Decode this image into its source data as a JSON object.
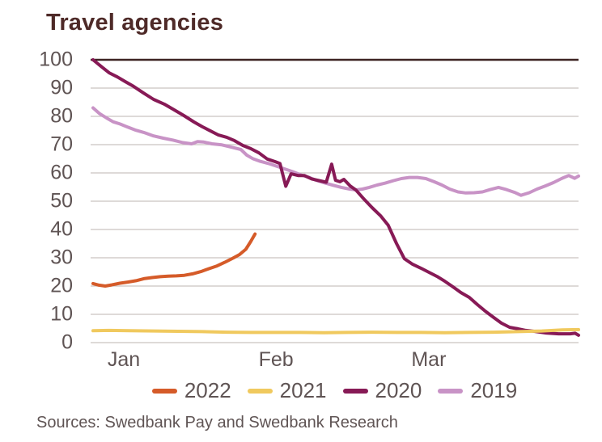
{
  "title": "Travel agencies",
  "source_note": "Sources: Swedbank Pay and Swedbank Research",
  "colors": {
    "title_text": "#4e2a28",
    "axis_text": "#5f5454",
    "grid_light": "#c9c3c1",
    "grid_dark_top": "#3d2423",
    "series_2022": "#d55b29",
    "series_2021": "#f0c95e",
    "series_2020": "#871a56",
    "series_2019": "#c893c6"
  },
  "chart_data": {
    "type": "line",
    "title": "Travel agencies",
    "xlabel": "",
    "ylabel": "",
    "ylim": [
      0,
      100
    ],
    "ytick_step": 10,
    "x_domain": [
      0,
      100
    ],
    "grid": "horizontal",
    "legend_position": "bottom",
    "x_ticks": [
      {
        "label": "Jan",
        "pos": 6.8
      },
      {
        "label": "Feb",
        "pos": 38.0
      },
      {
        "label": "Mar",
        "pos": 69.3
      }
    ],
    "series": [
      {
        "name": "2022",
        "color_key": "series_2022",
        "points": [
          [
            0.5,
            20.9
          ],
          [
            1.7,
            20.3
          ],
          [
            3,
            20
          ],
          [
            4.3,
            20.4
          ],
          [
            6,
            21
          ],
          [
            7.6,
            21.4
          ],
          [
            9.3,
            21.9
          ],
          [
            10.9,
            22.6
          ],
          [
            12.6,
            23
          ],
          [
            14.3,
            23.3
          ],
          [
            15.9,
            23.5
          ],
          [
            17.6,
            23.6
          ],
          [
            19.2,
            23.8
          ],
          [
            20.9,
            24.3
          ],
          [
            22.6,
            25.1
          ],
          [
            24.2,
            26.1
          ],
          [
            25.9,
            27.1
          ],
          [
            27.5,
            28.4
          ],
          [
            29.2,
            29.9
          ],
          [
            30.5,
            31.1
          ],
          [
            31.8,
            33
          ],
          [
            32.8,
            35.7
          ],
          [
            33.7,
            38.4
          ]
        ]
      },
      {
        "name": "2021",
        "color_key": "series_2021",
        "points": [
          [
            0.5,
            4.2
          ],
          [
            3.8,
            4.3
          ],
          [
            8,
            4.2
          ],
          [
            12.9,
            4.1
          ],
          [
            17.9,
            4
          ],
          [
            22.9,
            3.9
          ],
          [
            27.9,
            3.7
          ],
          [
            32.8,
            3.6
          ],
          [
            37.8,
            3.6
          ],
          [
            42.8,
            3.6
          ],
          [
            47.8,
            3.5
          ],
          [
            52.7,
            3.6
          ],
          [
            57.7,
            3.7
          ],
          [
            62.7,
            3.6
          ],
          [
            67.7,
            3.6
          ],
          [
            72.6,
            3.5
          ],
          [
            77.6,
            3.6
          ],
          [
            82.6,
            3.7
          ],
          [
            87.6,
            3.9
          ],
          [
            92.5,
            4.1
          ],
          [
            96.7,
            4.5
          ],
          [
            100,
            4.6
          ]
        ]
      },
      {
        "name": "2020",
        "color_key": "series_2020",
        "points": [
          [
            0.5,
            100
          ],
          [
            2.2,
            97.6
          ],
          [
            3.8,
            95.4
          ],
          [
            5.5,
            93.9
          ],
          [
            7.1,
            92.3
          ],
          [
            8.8,
            90.6
          ],
          [
            10.8,
            88.3
          ],
          [
            12.9,
            86
          ],
          [
            15.1,
            84.3
          ],
          [
            17.1,
            82.3
          ],
          [
            19.1,
            80.3
          ],
          [
            21.2,
            78
          ],
          [
            22.9,
            76.3
          ],
          [
            24.5,
            74.9
          ],
          [
            26.2,
            73.4
          ],
          [
            27.9,
            72.6
          ],
          [
            29.5,
            71.4
          ],
          [
            31.2,
            69.7
          ],
          [
            32.8,
            68.6
          ],
          [
            34.5,
            67.1
          ],
          [
            36.2,
            64.9
          ],
          [
            37.8,
            64
          ],
          [
            38.8,
            63.3
          ],
          [
            40,
            55.3
          ],
          [
            41.1,
            59.7
          ],
          [
            42.5,
            59.1
          ],
          [
            43.8,
            59.1
          ],
          [
            45.3,
            57.9
          ],
          [
            46.8,
            57.3
          ],
          [
            48.3,
            56.7
          ],
          [
            49.4,
            63.1
          ],
          [
            50.2,
            57.4
          ],
          [
            51.1,
            56.9
          ],
          [
            51.9,
            57.7
          ],
          [
            53.2,
            55.4
          ],
          [
            54.4,
            53.9
          ],
          [
            56.1,
            50.6
          ],
          [
            57.7,
            47.7
          ],
          [
            59.4,
            44.9
          ],
          [
            61,
            41.5
          ],
          [
            62.7,
            35
          ],
          [
            64.3,
            29.7
          ],
          [
            66,
            27.7
          ],
          [
            67.7,
            26.3
          ],
          [
            69.3,
            24.9
          ],
          [
            71,
            23.4
          ],
          [
            72.6,
            21.7
          ],
          [
            74.3,
            19.7
          ],
          [
            75.9,
            17.7
          ],
          [
            77.6,
            16
          ],
          [
            79.3,
            13.4
          ],
          [
            80.9,
            11.1
          ],
          [
            82.6,
            8.9
          ],
          [
            84.2,
            6.9
          ],
          [
            85.9,
            5.4
          ],
          [
            87.6,
            4.9
          ],
          [
            89.2,
            4.3
          ],
          [
            90.9,
            4
          ],
          [
            93.4,
            3.4
          ],
          [
            95.9,
            3.1
          ],
          [
            98.3,
            3.1
          ],
          [
            99.3,
            3.3
          ],
          [
            100,
            2.6
          ]
        ]
      },
      {
        "name": "2019",
        "color_key": "series_2019",
        "points": [
          [
            0.5,
            83
          ],
          [
            1.8,
            81
          ],
          [
            3.3,
            79.4
          ],
          [
            4.6,
            78.1
          ],
          [
            6,
            77.3
          ],
          [
            7.6,
            76.2
          ],
          [
            9.3,
            75.1
          ],
          [
            10.9,
            74.3
          ],
          [
            12.9,
            73.1
          ],
          [
            14.9,
            72.3
          ],
          [
            16.9,
            71.6
          ],
          [
            18.9,
            70.7
          ],
          [
            20.7,
            70.3
          ],
          [
            21.9,
            71.1
          ],
          [
            23.2,
            70.9
          ],
          [
            24.9,
            70.3
          ],
          [
            26.9,
            69.9
          ],
          [
            28.9,
            69.1
          ],
          [
            30.8,
            68.3
          ],
          [
            32,
            66.3
          ],
          [
            33.2,
            65.1
          ],
          [
            34.8,
            64.1
          ],
          [
            36.5,
            63.3
          ],
          [
            38.1,
            62.4
          ],
          [
            39.8,
            61.4
          ],
          [
            41.5,
            60.4
          ],
          [
            43.1,
            59.3
          ],
          [
            44.8,
            58.4
          ],
          [
            46.4,
            57.3
          ],
          [
            48.1,
            56.4
          ],
          [
            49.8,
            55.6
          ],
          [
            51.4,
            54.9
          ],
          [
            53.1,
            54.3
          ],
          [
            54.4,
            54
          ],
          [
            55.7,
            54.3
          ],
          [
            57.1,
            54.9
          ],
          [
            58.7,
            55.7
          ],
          [
            60.4,
            56.4
          ],
          [
            62.1,
            57.3
          ],
          [
            63.7,
            58
          ],
          [
            65.3,
            58.4
          ],
          [
            67,
            58.4
          ],
          [
            68.7,
            58
          ],
          [
            70.4,
            56.9
          ],
          [
            72,
            55.7
          ],
          [
            73.6,
            54.3
          ],
          [
            75.3,
            53.3
          ],
          [
            76.9,
            52.9
          ],
          [
            78.6,
            53
          ],
          [
            80.3,
            53.3
          ],
          [
            81.9,
            54.1
          ],
          [
            83.6,
            54.9
          ],
          [
            85.2,
            54.1
          ],
          [
            86.9,
            53.1
          ],
          [
            88.2,
            52.1
          ],
          [
            89.9,
            53
          ],
          [
            91.5,
            54.3
          ],
          [
            93.2,
            55.4
          ],
          [
            94.9,
            56.6
          ],
          [
            96.5,
            58
          ],
          [
            98,
            59.1
          ],
          [
            99.2,
            58.1
          ],
          [
            100,
            58.9
          ]
        ]
      }
    ]
  }
}
